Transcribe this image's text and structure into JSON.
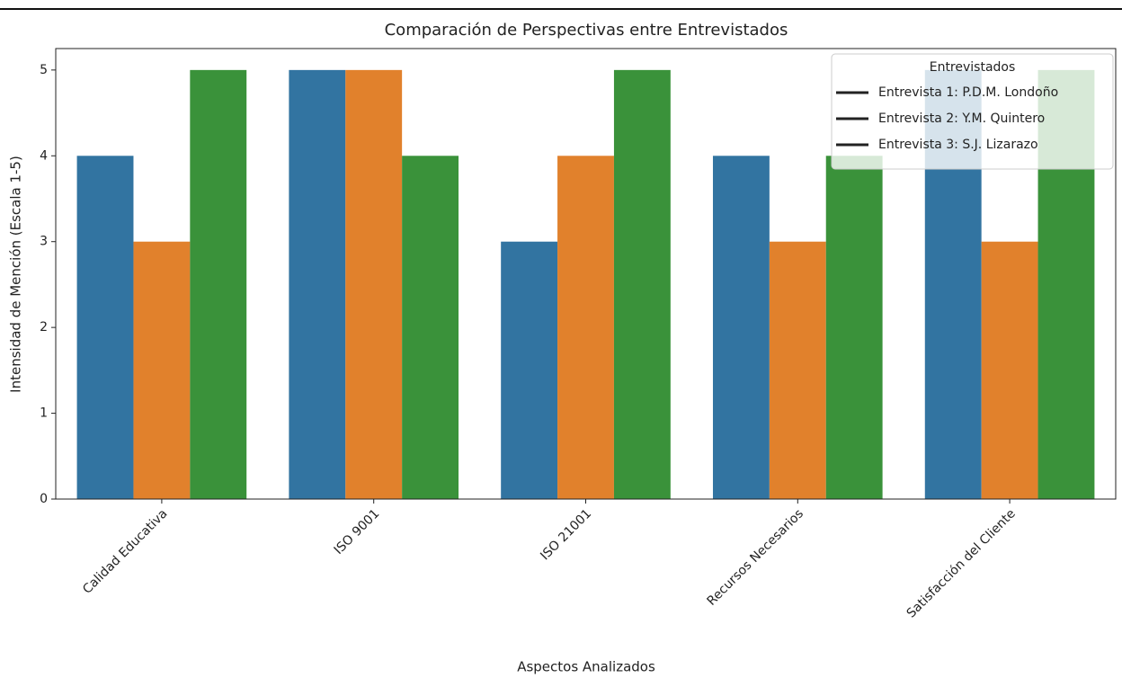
{
  "chart_data": {
    "type": "bar",
    "title": "Comparación de Perspectivas entre Entrevistados",
    "x_label": "Aspectos Analizados",
    "y_label": "Intensidad de Mención (Escala 1-5)",
    "categories": [
      "Calidad Educativa",
      "ISO 9001",
      "ISO 21001",
      "Recursos Necesarios",
      "Satisfacción del Cliente"
    ],
    "series": [
      {
        "name": "Entrevista 1: P.D.M. Londoño",
        "color": "#3274a1",
        "values": [
          4,
          5,
          3,
          4,
          5
        ]
      },
      {
        "name": "Entrevista 2: Y.M. Quintero",
        "color": "#e1812c",
        "values": [
          3,
          5,
          4,
          3,
          3
        ]
      },
      {
        "name": "Entrevista 3: S.J. Lizarazo",
        "color": "#3a923a",
        "values": [
          5,
          4,
          5,
          4,
          5
        ]
      }
    ],
    "legend_title": "Entrevistados",
    "legend_position": "upper right",
    "ylim": [
      0,
      5.25
    ],
    "yticks": [
      0,
      1,
      2,
      3,
      4,
      5
    ]
  }
}
